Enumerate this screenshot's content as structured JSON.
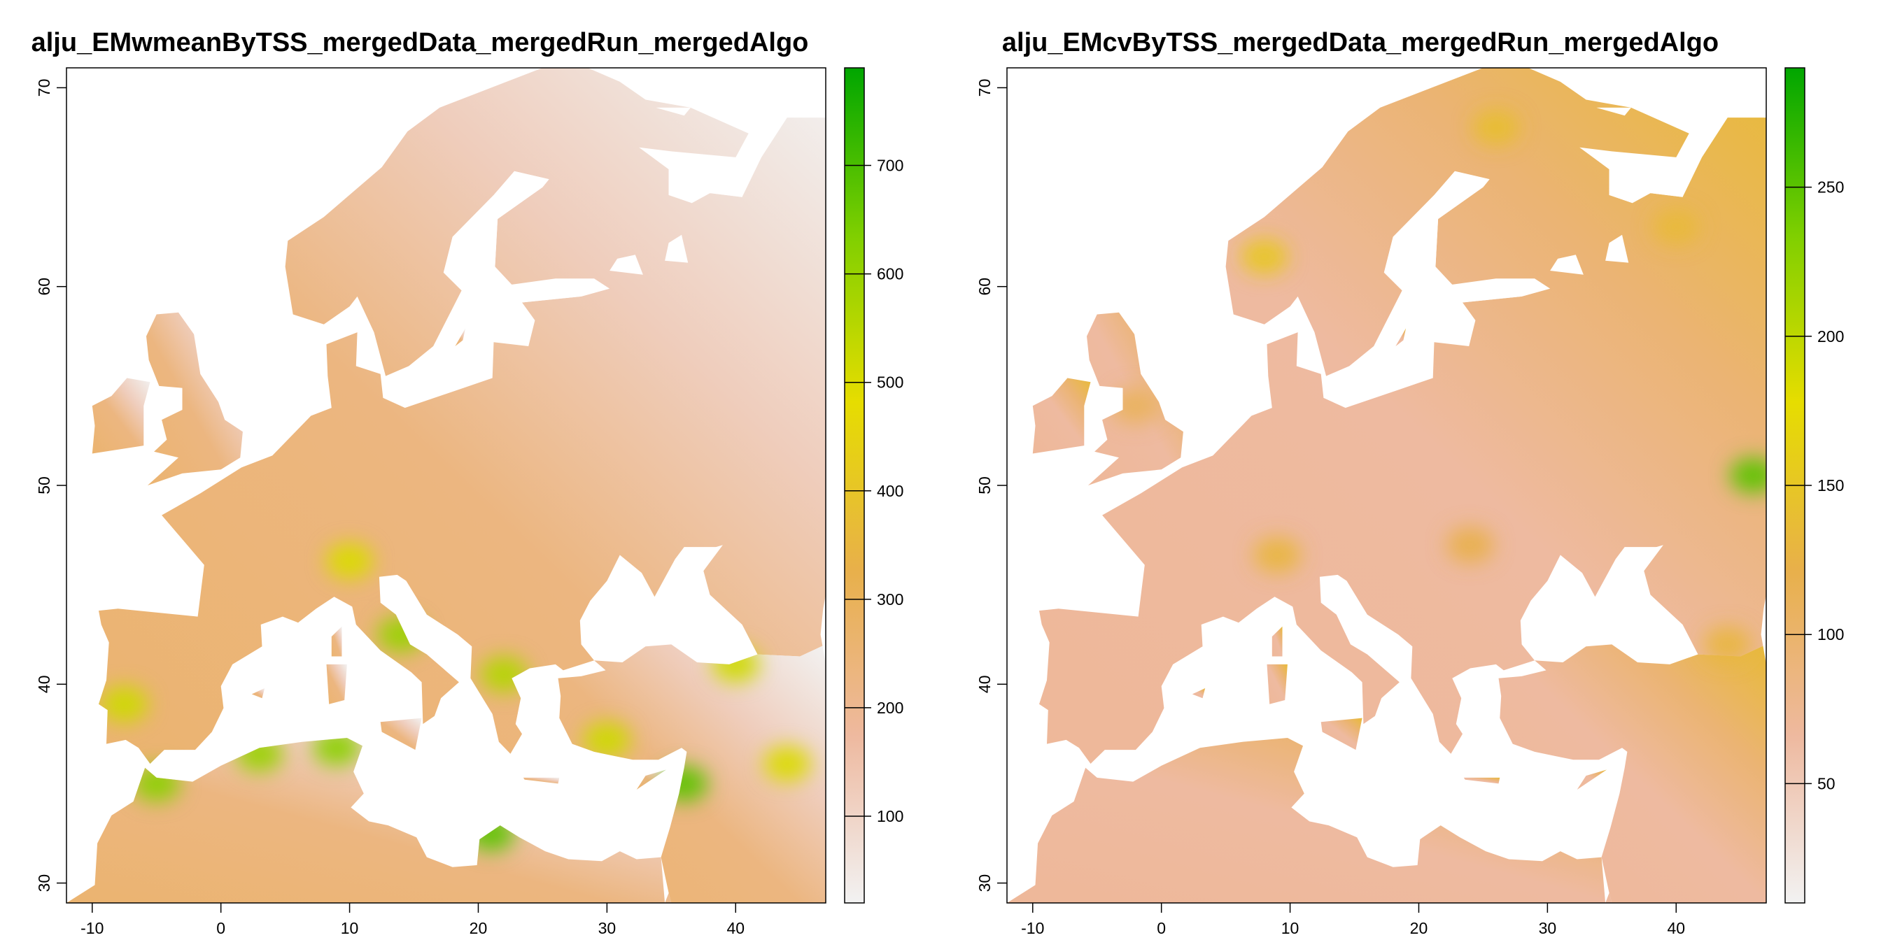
{
  "maps": [
    {
      "id": "wmean",
      "title": "alju_EMwmeanByTSS_mergedData_mergedRun_mergedAlgo",
      "lon_range": [
        -12,
        47
      ],
      "lat_range": [
        29,
        71
      ],
      "x_ticks": [
        -10,
        0,
        10,
        20,
        30,
        40
      ],
      "y_ticks": [
        30,
        40,
        50,
        60,
        70
      ],
      "legend_range": [
        20,
        790
      ],
      "legend_ticks": [
        100,
        200,
        300,
        400,
        500,
        600,
        700
      ],
      "colors": [
        "#f2f2f2",
        "#eeb99f",
        "#e8b04a",
        "#e6dd00",
        "#7fcf00",
        "#00a600"
      ],
      "hotspots": [
        {
          "lon": -7.5,
          "lat": 39.0,
          "value": 520
        },
        {
          "lon": -5.0,
          "lat": 35.0,
          "value": 620
        },
        {
          "lon": 3.0,
          "lat": 36.5,
          "value": 600
        },
        {
          "lon": 9.0,
          "lat": 36.8,
          "value": 620
        },
        {
          "lon": 21.0,
          "lat": 32.5,
          "value": 680
        },
        {
          "lon": 36.0,
          "lat": 35.0,
          "value": 680
        },
        {
          "lon": 14.0,
          "lat": 42.5,
          "value": 600
        },
        {
          "lon": 22.0,
          "lat": 40.5,
          "value": 560
        },
        {
          "lon": 30.0,
          "lat": 37.2,
          "value": 520
        },
        {
          "lon": 40.0,
          "lat": 41.0,
          "value": 520
        },
        {
          "lon": 10.0,
          "lat": 46.2,
          "value": 500
        },
        {
          "lon": 44.0,
          "lat": 36.0,
          "value": 500
        }
      ]
    },
    {
      "id": "cv",
      "title": "alju_EMcvByTSS_mergedData_mergedRun_mergedAlgo",
      "lon_range": [
        -12,
        47
      ],
      "lat_range": [
        29,
        71
      ],
      "x_ticks": [
        -10,
        0,
        10,
        20,
        30,
        40
      ],
      "y_ticks": [
        30,
        40,
        50,
        60,
        70
      ],
      "legend_range": [
        10,
        290
      ],
      "legend_ticks": [
        50,
        100,
        150,
        200,
        250
      ],
      "colors": [
        "#f2f2f2",
        "#eeb99f",
        "#e8b04a",
        "#e6dd00",
        "#7fcf00",
        "#00a600"
      ],
      "hotspots": [
        {
          "lon": 46.0,
          "lat": 50.5,
          "value": 250
        },
        {
          "lon": 8.0,
          "lat": 61.5,
          "value": 150
        },
        {
          "lon": 26.0,
          "lat": 68.0,
          "value": 140
        },
        {
          "lon": 40.0,
          "lat": 63.0,
          "value": 135
        },
        {
          "lon": 9.0,
          "lat": 46.5,
          "value": 130
        },
        {
          "lon": 24.0,
          "lat": 47.0,
          "value": 120
        },
        {
          "lon": -2.0,
          "lat": 54.0,
          "value": 110
        },
        {
          "lon": 44.0,
          "lat": 42.0,
          "value": 130
        }
      ]
    }
  ]
}
